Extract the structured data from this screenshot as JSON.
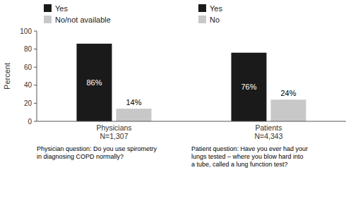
{
  "chart_data": {
    "type": "bar",
    "categories": [
      "Physicians\nN=1,307",
      "Patients\nN=4,343"
    ],
    "series": [
      {
        "name": "Yes",
        "color": "#1a1a1a",
        "values": [
          86,
          null
        ],
        "value_labels": [
          "86%",
          null
        ]
      },
      {
        "name": "No/not available",
        "color": "#c8c8c8",
        "values": [
          14,
          null
        ],
        "value_labels": [
          "14%",
          null
        ]
      },
      {
        "name": "Yes",
        "color": "#1a1a1a",
        "values": [
          null,
          76
        ],
        "value_labels": [
          null,
          "76%"
        ]
      },
      {
        "name": "No",
        "color": "#c8c8c8",
        "values": [
          null,
          24
        ],
        "value_labels": [
          null,
          "24%"
        ]
      }
    ],
    "y_label": "Percent",
    "ylim": [
      0,
      100
    ],
    "yticks": [
      0,
      20,
      40,
      60,
      80,
      100
    ],
    "grid": false,
    "legend": "top",
    "data_labels": true,
    "annotations": [
      "Physician question: Do you use spirometry\nin diagnosing COPD normally?",
      "Patient question: Have you ever had your\nlungs tested – where you blow hard into\na tube, called a lung function test?"
    ]
  }
}
